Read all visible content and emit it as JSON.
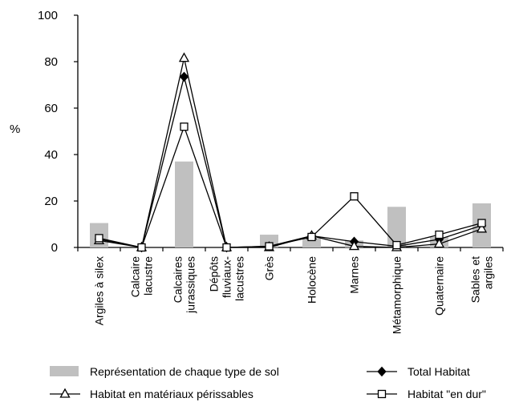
{
  "chart_data": {
    "type": "bar",
    "ylabel": "%",
    "ylim": [
      0,
      100
    ],
    "yticks": [
      "0",
      "20",
      "40",
      "60",
      "80",
      "100"
    ],
    "grid": false,
    "legend_position": "bottom",
    "categories": [
      [
        "Argiles à silex"
      ],
      [
        "Calcaire",
        "lacustre"
      ],
      [
        "Calcaires",
        "jurassiques"
      ],
      [
        "Dépôts",
        "fluviaux-",
        "lacustres"
      ],
      [
        "Grès"
      ],
      [
        "Holocène"
      ],
      [
        "Marnes"
      ],
      [
        "Métamorphique"
      ],
      [
        "Quaternaire"
      ],
      [
        "Sables et",
        "argiles"
      ]
    ],
    "series": [
      {
        "name": "Représentation de chaque type de sol",
        "kind": "bar",
        "color": "#c0c0c0",
        "values": [
          10.5,
          0,
          37,
          0,
          5.5,
          4,
          3,
          17.5,
          4.5,
          19
        ]
      },
      {
        "name": "Total Habitat",
        "kind": "line",
        "marker": "diamond",
        "values": [
          3.5,
          0,
          73.5,
          0,
          0.5,
          5,
          2.5,
          0.5,
          3.5,
          9.5
        ]
      },
      {
        "name": "Habitat en matériaux périssables",
        "kind": "line",
        "marker": "triangle",
        "values": [
          3,
          0,
          81.5,
          0,
          0,
          5,
          0.5,
          0,
          1.5,
          8
        ]
      },
      {
        "name": "Habitat \"en dur\"",
        "kind": "line",
        "marker": "square",
        "values": [
          4,
          0,
          52,
          0,
          0.5,
          4.5,
          22,
          1,
          5.5,
          10.5
        ]
      }
    ],
    "legend": [
      {
        "label": "Représentation de chaque type de sol",
        "marker": "bar"
      },
      {
        "label": "Total Habitat",
        "marker": "diamond"
      },
      {
        "label": "Habitat en matériaux périssables",
        "marker": "triangle"
      },
      {
        "label": "Habitat \"en dur\"",
        "marker": "square"
      }
    ]
  }
}
